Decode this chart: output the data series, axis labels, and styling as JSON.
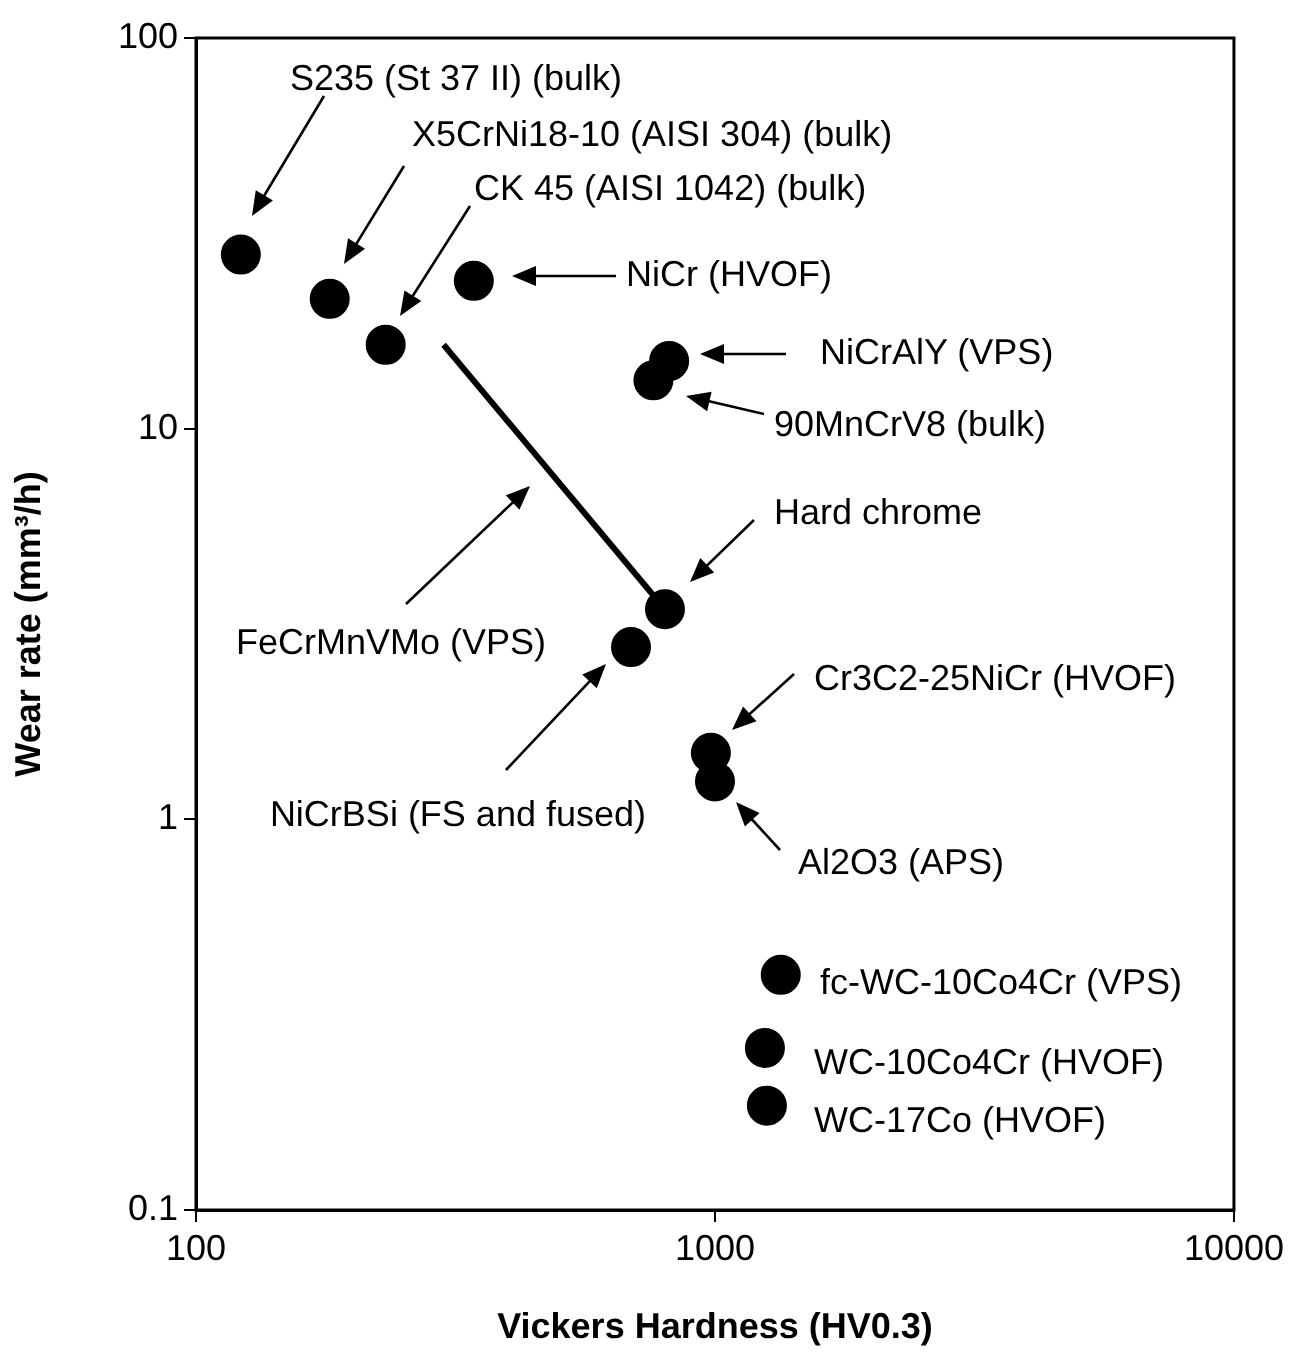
{
  "chart_data": {
    "type": "scatter",
    "xlabel": "Vickers Hardness (HV0.3)",
    "ylabel": "Wear rate (mm³/h)",
    "log": "xy",
    "grid": false,
    "legend": false,
    "marker": "circle",
    "xlim": [
      100,
      10000
    ],
    "xticks": [
      100,
      1000,
      10000
    ],
    "ylim": [
      0.1,
      100
    ],
    "yticks": [
      0.1,
      1,
      10,
      100
    ],
    "series": [
      {
        "color": "#000000",
        "x": [
          122,
          181,
          232,
          343,
          816,
          761,
          801,
          689,
          982,
          1000,
          1339,
          1248,
          1259
        ],
        "values": [
          27.9,
          21.5,
          16.4,
          23.9,
          14.9,
          13.3,
          3.45,
          2.76,
          1.48,
          1.25,
          0.4,
          0.26,
          0.185
        ]
      },
      {
        "type": "line",
        "color": "#000000",
        "marker": "none",
        "line_style": "solid",
        "x": [
          300,
          801
        ],
        "values": [
          16.4,
          3.45
        ]
      }
    ],
    "annotations": [
      "S235 (St 37 II) (bulk)",
      "X5CrNi18-10 (AISI 304) (bulk)",
      "CK 45 (AISI 1042) (bulk)",
      "NiCr (HVOF)",
      "NiCrAlY (VPS)",
      "90MnCrV8 (bulk)",
      "Hard chrome",
      "FeCrMnVMo (VPS)",
      "NiCrBSi (FS and fused)",
      "Cr3C2-25NiCr (HVOF)",
      "Al2O3 (APS)",
      "fc-WC-10Co4Cr (VPS)",
      "WC-10Co4Cr (HVOF)",
      "WC-17Co (HVOF)"
    ]
  }
}
